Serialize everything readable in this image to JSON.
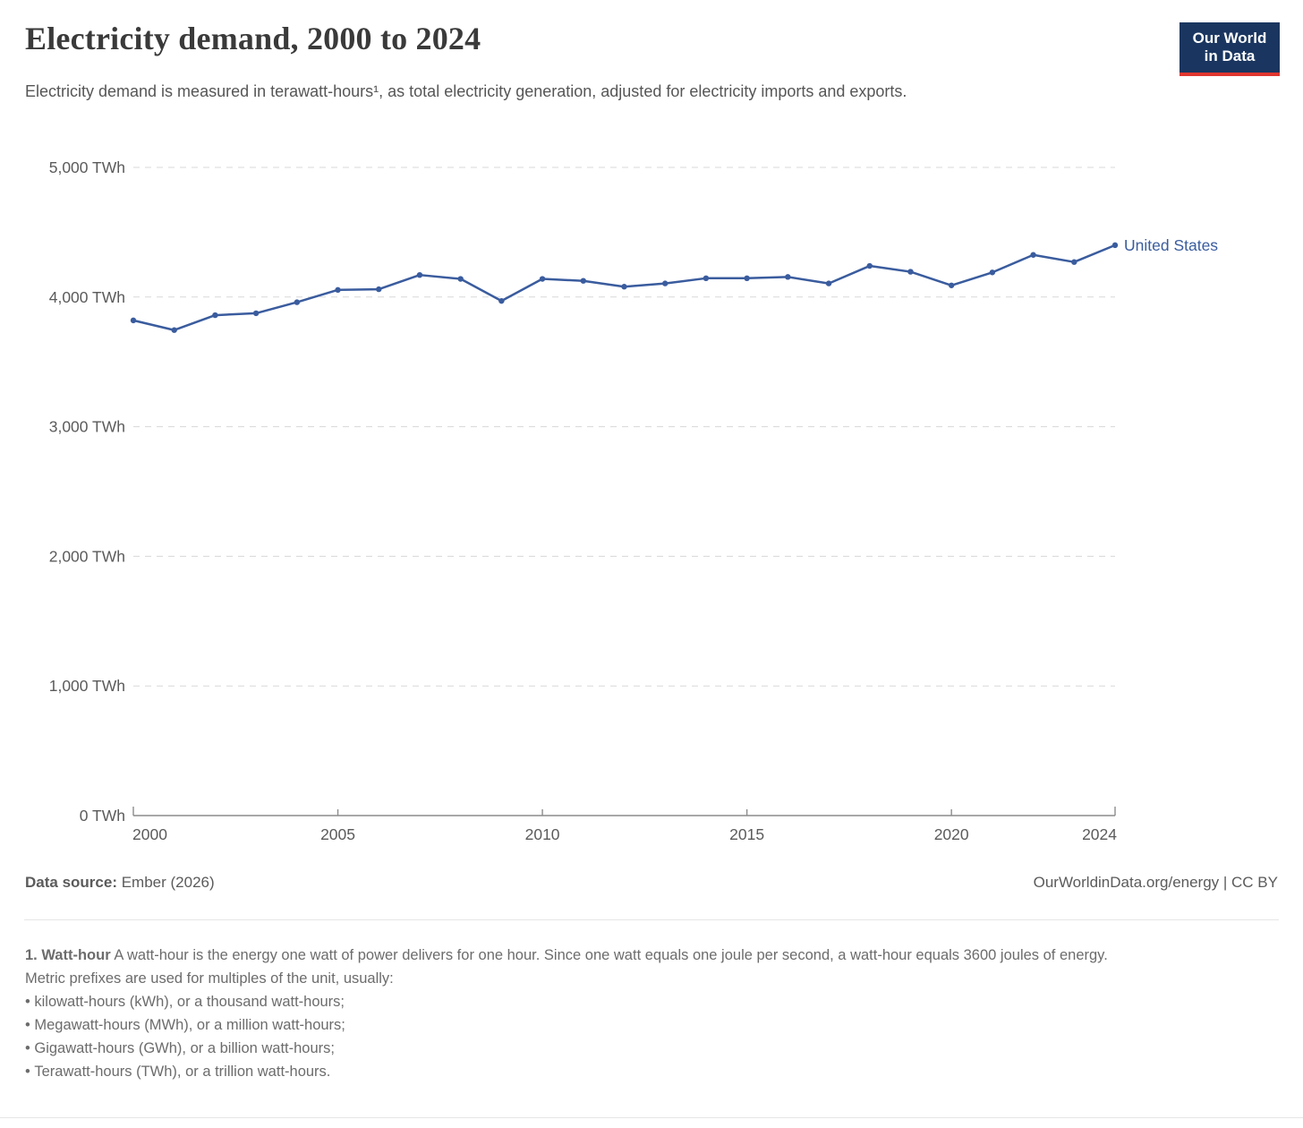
{
  "header": {
    "title": "Electricity demand, 2000 to 2024",
    "subtitle": "Electricity demand is measured in terawatt-hours¹, as total electricity generation, adjusted for electricity imports and exports.",
    "logo": {
      "line1": "Our World",
      "line2": "in Data",
      "background_color": "#1a3660",
      "underline_color": "#e0362f"
    }
  },
  "chart_data": {
    "type": "line",
    "title": "Electricity demand, 2000 to 2024",
    "xlabel": "",
    "ylabel": "TWh",
    "xlim": [
      2000,
      2024
    ],
    "ylim": [
      0,
      5000
    ],
    "grid": "horizontal-dashed",
    "legend_position": "end-of-line-label",
    "x": [
      2000,
      2001,
      2002,
      2003,
      2004,
      2005,
      2006,
      2007,
      2008,
      2009,
      2010,
      2011,
      2012,
      2013,
      2014,
      2015,
      2016,
      2017,
      2018,
      2019,
      2020,
      2021,
      2022,
      2023,
      2024
    ],
    "series": [
      {
        "name": "United States",
        "color": "#3a5c9e",
        "values": [
          3820,
          3745,
          3860,
          3875,
          3960,
          4055,
          4060,
          4170,
          4140,
          3970,
          4140,
          4125,
          4080,
          4105,
          4145,
          4145,
          4155,
          4105,
          4240,
          4195,
          4090,
          4190,
          4325,
          4270,
          4400
        ]
      }
    ],
    "y_ticks": [
      {
        "value": 0,
        "label": "0 TWh"
      },
      {
        "value": 1000,
        "label": "1,000 TWh"
      },
      {
        "value": 2000,
        "label": "2,000 TWh"
      },
      {
        "value": 3000,
        "label": "3,000 TWh"
      },
      {
        "value": 4000,
        "label": "4,000 TWh"
      },
      {
        "value": 5000,
        "label": "5,000 TWh"
      }
    ],
    "x_ticks": [
      2000,
      2005,
      2010,
      2015,
      2020,
      2024
    ]
  },
  "footer": {
    "source_label": "Data source:",
    "source_value": "Ember (2026)",
    "attribution": "OurWorldinData.org/energy | CC BY"
  },
  "footnote": {
    "heading": "1. Watt-hour",
    "line1_rest": "A watt-hour is the energy one watt of power delivers for one hour. Since one watt equals one joule per second, a watt-hour equals 3600 joules of energy.",
    "line2": "Metric prefixes are used for multiples of the unit, usually:",
    "bullets": [
      "kilowatt-hours (kWh), or a thousand watt-hours;",
      "Megawatt-hours (MWh), or a million watt-hours;",
      "Gigawatt-hours (GWh), or a billion watt-hours;",
      "Terawatt-hours (TWh), or a trillion watt-hours."
    ]
  }
}
